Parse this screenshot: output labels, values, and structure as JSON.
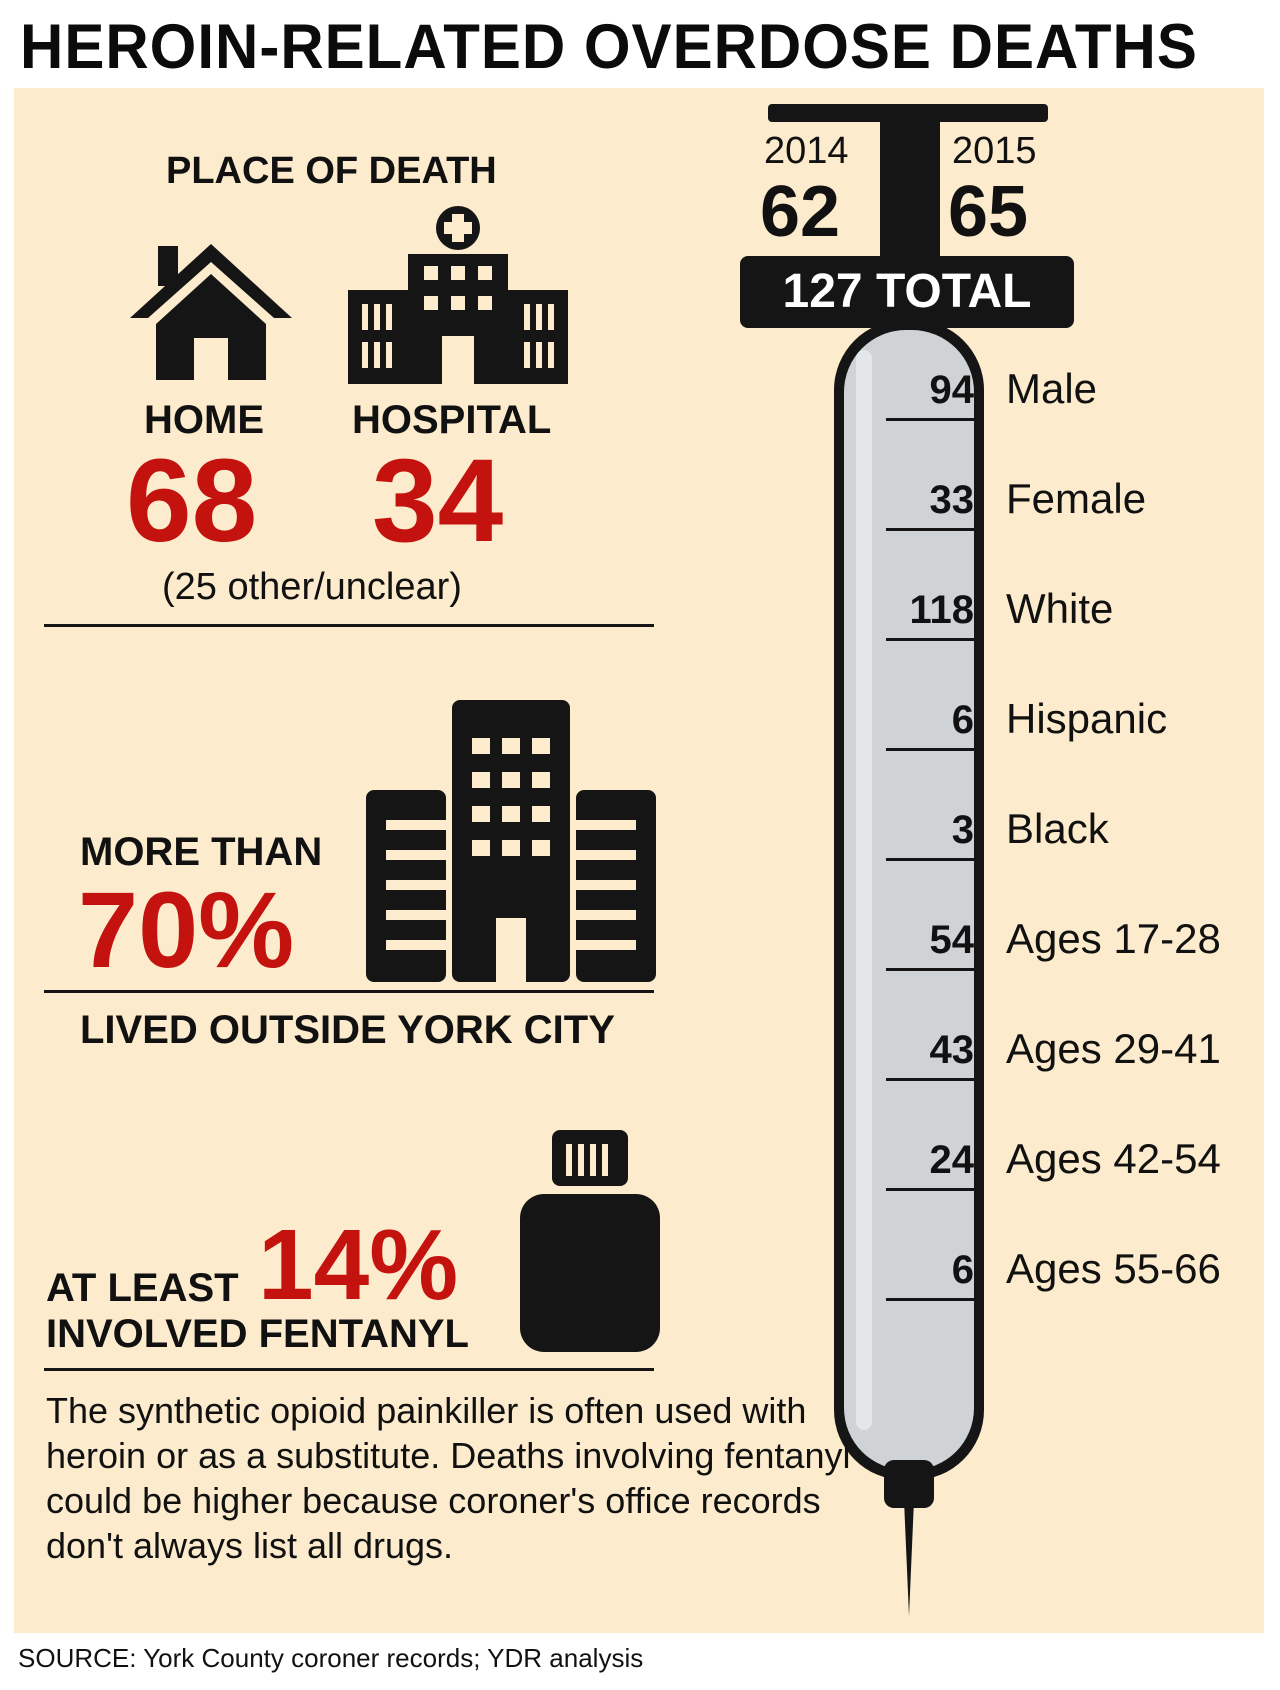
{
  "title": "HEROIN-RELATED OVERDOSE DEATHS",
  "place_of_death": {
    "heading": "PLACE OF DEATH",
    "home_label": "HOME",
    "home_value": "68",
    "hospital_label": "HOSPITAL",
    "hospital_value": "34",
    "other_note": "(25 other/unclear)"
  },
  "outside_city": {
    "prefix": "MORE THAN",
    "percent": "70%",
    "caption": "LIVED OUTSIDE YORK CITY"
  },
  "fentanyl": {
    "prefix": "AT LEAST",
    "percent": "14%",
    "caption": "INVOLVED FENTANYL",
    "description": "The synthetic opioid painkiller is often used with heroin or as a substitute. Deaths involving fentanyl could be higher because coroner's office records don't always list all drugs."
  },
  "syringe": {
    "year1": "2014",
    "value1": "62",
    "year2": "2015",
    "value2": "65",
    "total": "127 TOTAL",
    "stats": [
      {
        "value": "94",
        "label": "Male"
      },
      {
        "value": "33",
        "label": "Female"
      },
      {
        "value": "118",
        "label": "White"
      },
      {
        "value": "6",
        "label": "Hispanic"
      },
      {
        "value": "3",
        "label": "Black"
      },
      {
        "value": "54",
        "label": "Ages 17-28"
      },
      {
        "value": "43",
        "label": "Ages 29-41"
      },
      {
        "value": "24",
        "label": "Ages 42-54"
      },
      {
        "value": "6",
        "label": "Ages 55-66"
      }
    ]
  },
  "source": "SOURCE: York County coroner records; YDR analysis",
  "icons": [
    "house-icon",
    "hospital-icon",
    "buildings-icon",
    "pill-bottle-icon",
    "syringe-icon"
  ],
  "colors": {
    "background": "#fcebcc",
    "accent_red": "#c4120e",
    "ink": "#151515",
    "barrel": "#cfd3d6"
  }
}
